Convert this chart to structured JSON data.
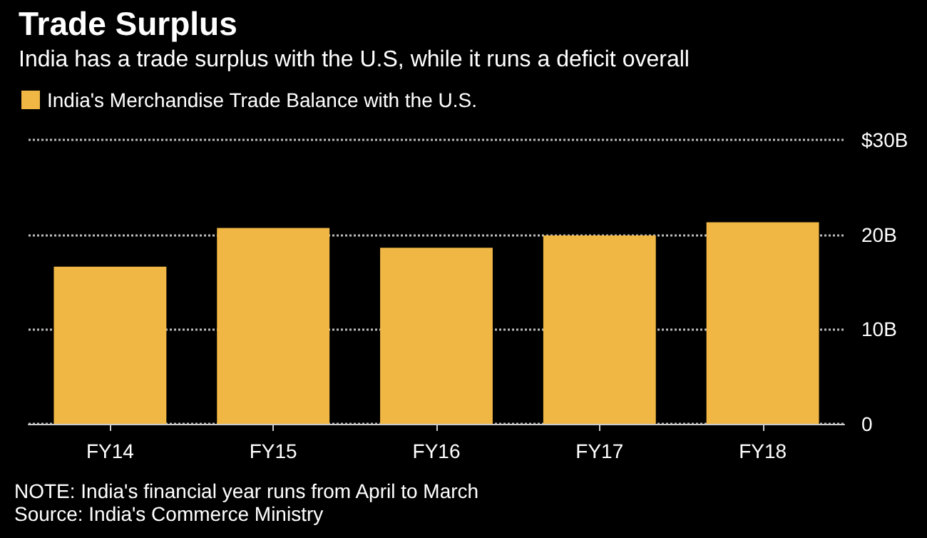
{
  "chart_data": {
    "type": "bar",
    "title": "Trade Surplus",
    "subtitle": "India has a trade surplus with the U.S, while it runs a deficit overall",
    "categories": [
      "FY14",
      "FY15",
      "FY16",
      "FY17",
      "FY18"
    ],
    "series": [
      {
        "name": "India's Merchandise Trade Balance with the U.S.",
        "color": "#f0b745",
        "values": [
          16.6,
          20.7,
          18.6,
          19.9,
          21.3
        ]
      }
    ],
    "ylim": [
      0,
      30
    ],
    "yticks": [
      0,
      {
        "value": 10,
        "label": "10B"
      },
      {
        "value": 20,
        "label": "20B"
      },
      {
        "value": 30,
        "label": "$30B"
      }
    ],
    "grid": "y",
    "legend": "top left",
    "annotations": [
      "NOTE: India's financial year runs from April to March",
      "Source: India's Commerce Ministry"
    ]
  }
}
